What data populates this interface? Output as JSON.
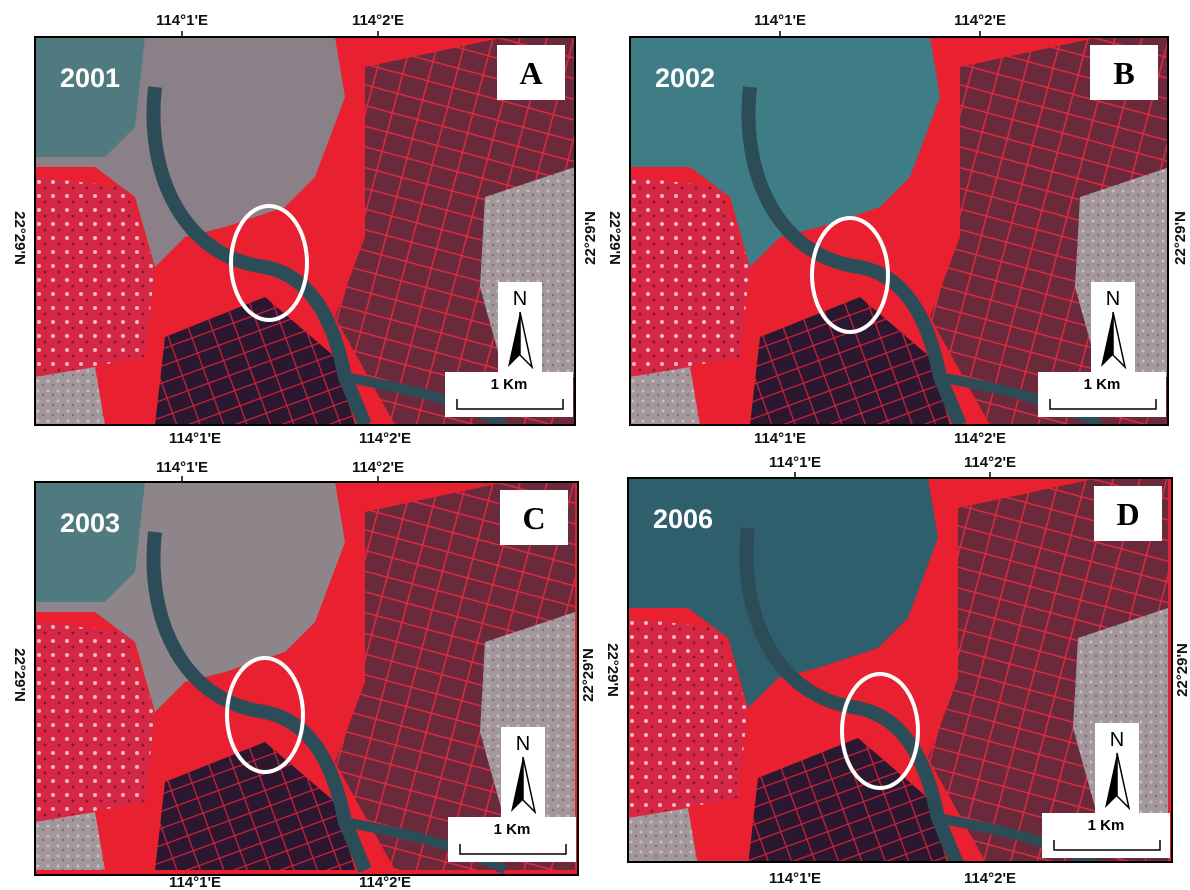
{
  "panels": [
    {
      "year": "2001",
      "letter": "A",
      "top_labels": [
        "114°1'E",
        "114°2'E"
      ],
      "bottom_labels": [
        "114°1'E",
        "114°2'E"
      ],
      "left_label": "22°29'N",
      "right_label": "22°29'N",
      "north": "N",
      "scale": "1 Km"
    },
    {
      "year": "2002",
      "letter": "B",
      "top_labels": [
        "114°1'E",
        "114°2'E"
      ],
      "bottom_labels": [
        "114°1'E",
        "114°2'E"
      ],
      "left_label": "22°29'N",
      "right_label": "22°29'N",
      "north": "N",
      "scale": "1 Km"
    },
    {
      "year": "2003",
      "letter": "C",
      "top_labels": [
        "114°1'E",
        "114°2'E"
      ],
      "bottom_labels": [
        "114°1'E",
        "114°2'E"
      ],
      "left_label": "22°29'N",
      "right_label": "22°29'N",
      "north": "N",
      "scale": "1 Km"
    },
    {
      "year": "2006",
      "letter": "D",
      "top_labels": [
        "114°1'E",
        "114°2'E"
      ],
      "bottom_labels": [
        "114°1'E",
        "114°2'E"
      ],
      "left_label": "22°29'N",
      "right_label": "22°29'N",
      "north": "N",
      "scale": "1 Km"
    }
  ]
}
